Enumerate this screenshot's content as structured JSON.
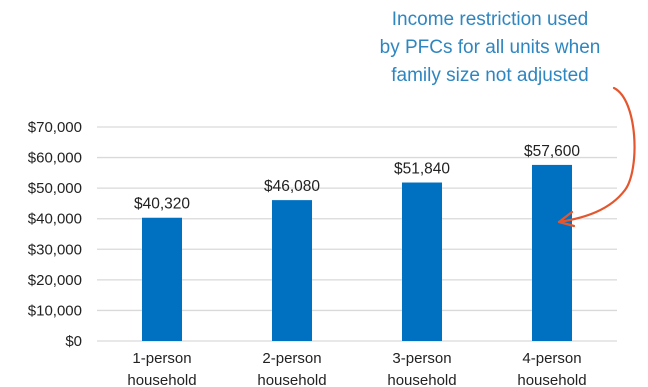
{
  "chart_data": {
    "type": "bar",
    "categories": [
      [
        "1-person",
        "household"
      ],
      [
        "2-person",
        "household"
      ],
      [
        "3-person",
        "household"
      ],
      [
        "4-person",
        "household"
      ]
    ],
    "values": [
      40320,
      46080,
      51840,
      57600
    ],
    "data_labels": [
      "$40,320",
      "$46,080",
      "$51,840",
      "$57,600"
    ],
    "ylim": [
      0,
      70000
    ],
    "yticks": [
      0,
      10000,
      20000,
      30000,
      40000,
      50000,
      60000,
      70000
    ],
    "ytick_labels": [
      "$0",
      "$10,000",
      "$20,000",
      "$30,000",
      "$40,000",
      "$50,000",
      "$60,000",
      "$70,000"
    ],
    "grid": true,
    "annotation": {
      "lines": [
        "Income restriction used",
        "by PFCs for all units when",
        "family size not adjusted"
      ],
      "points_to_category": 3
    }
  },
  "colors": {
    "bar": "#0070c0",
    "grid": "#d9d9d9",
    "annotation_text": "#2e86c1",
    "arrow": "#e4572e"
  }
}
